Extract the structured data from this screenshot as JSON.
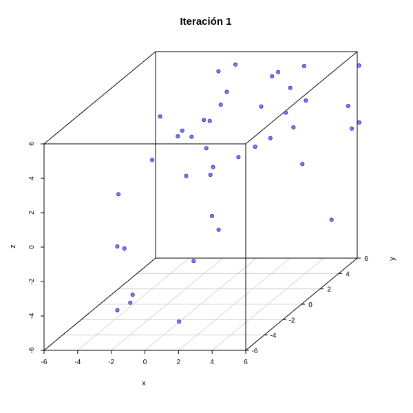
{
  "chart_data": {
    "type": "scatter3d",
    "title": "Iteración 1",
    "xlabel": "x",
    "ylabel": "y",
    "zlabel": "z",
    "xlim": [
      -6,
      6
    ],
    "ylim": [
      -6,
      6
    ],
    "zlim": [
      -6,
      6
    ],
    "xticks": [
      "-6",
      "-4",
      "-2",
      "0",
      "2",
      "4",
      "6"
    ],
    "yticks": [
      "-6",
      "-4",
      "-2",
      "0",
      "2",
      "4",
      "6"
    ],
    "zticks": [
      "-6",
      "-4",
      "-2",
      "0",
      "2",
      "4",
      "6"
    ],
    "grid": "floor",
    "point_color": "#7f7fff",
    "point_edge_color": "#1a1aa6",
    "points": [
      [
        -3.9,
        5.5,
        -1.0
      ],
      [
        -2.9,
        -3.6,
        2.0
      ],
      [
        -3.3,
        -3.0,
        -1.3
      ],
      [
        -1.6,
        3.5,
        1.5
      ],
      [
        -1.8,
        -1.1,
        5.4
      ],
      [
        -2.5,
        5.5,
        2.2
      ],
      [
        -2.2,
        2.0,
        3.2
      ],
      [
        -0.2,
        0.7,
        4.4
      ],
      [
        -0.6,
        3.0,
        6.2
      ],
      [
        0.8,
        2.3,
        6.9
      ],
      [
        1.4,
        -3.5,
        5.3
      ],
      [
        -1.5,
        -2.5,
        3.5
      ],
      [
        -0.1,
        3.0,
        5.0
      ],
      [
        0.7,
        0.9,
        5.2
      ],
      [
        2.4,
        4.0,
        5.7
      ],
      [
        3.3,
        -0.1,
        3.2
      ],
      [
        4.9,
        0.3,
        5.0
      ],
      [
        4.5,
        1.5,
        5.9
      ],
      [
        -3.1,
        -2.6,
        -1.6
      ],
      [
        -0.1,
        1.4,
        -1.5
      ],
      [
        1.2,
        1.9,
        1.7
      ],
      [
        1.3,
        -1.3,
        2.1
      ],
      [
        3.1,
        1.9,
        2.8
      ],
      [
        -2.3,
        1.7,
        3.0
      ],
      [
        2.5,
        2.0,
        4.6
      ],
      [
        2.7,
        2.8,
        6.0
      ],
      [
        3.5,
        -5.0,
        4.2
      ],
      [
        4.6,
        3.0,
        4.5
      ],
      [
        4.8,
        1.3,
        3.7
      ],
      [
        5.5,
        1.0,
        1.7
      ],
      [
        4.5,
        3.0,
        6.5
      ],
      [
        6.9,
        3.4,
        4.0
      ],
      [
        7.1,
        4.2,
        6.0
      ],
      [
        -1.2,
        -5.4,
        -3.5
      ],
      [
        -2.0,
        -3.7,
        -3.8
      ],
      [
        -2.3,
        -4.8,
        -4.2
      ],
      [
        1.4,
        -0.6,
        -1.4
      ],
      [
        0.8,
        -2.2,
        -2.5
      ],
      [
        6.5,
        4.5,
        2.2
      ],
      [
        7.5,
        3.5,
        3.0
      ],
      [
        5.8,
        3.6,
        -2.7
      ],
      [
        1.7,
        -5.4,
        -4.6
      ]
    ]
  }
}
